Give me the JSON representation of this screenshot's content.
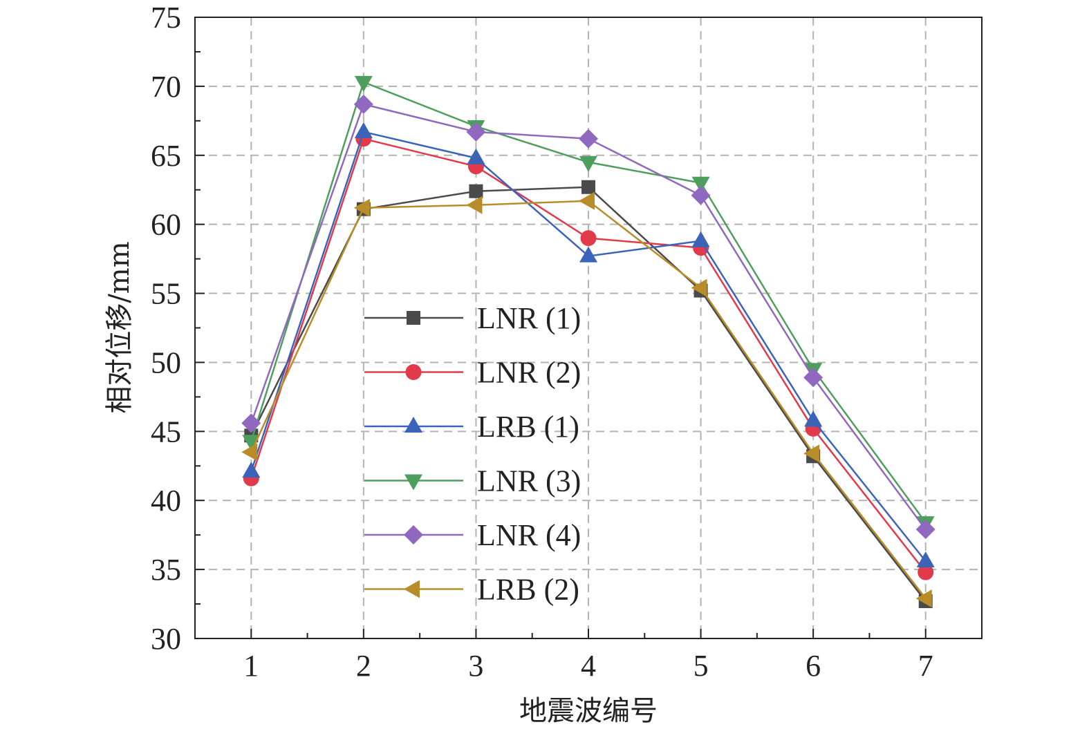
{
  "chart_data": {
    "type": "line",
    "title": "",
    "xlabel": "地震波编号",
    "ylabel": "相对位移/mm",
    "x": [
      1,
      2,
      3,
      4,
      5,
      6,
      7
    ],
    "xlim": [
      0.5,
      7.5
    ],
    "ylim": [
      30,
      75
    ],
    "xticks": [
      1,
      2,
      3,
      4,
      5,
      6,
      7
    ],
    "yticks": [
      30,
      35,
      40,
      45,
      50,
      55,
      60,
      65,
      70,
      75
    ],
    "grid": true,
    "legend_position": "center-left",
    "series": [
      {
        "name": "LNR (1)",
        "color": "#4a4a4a",
        "marker": "square",
        "values": [
          44.7,
          61.1,
          62.4,
          62.7,
          55.2,
          43.2,
          32.7
        ]
      },
      {
        "name": "LNR (2)",
        "color": "#e23a4a",
        "marker": "circle",
        "values": [
          41.6,
          66.2,
          64.2,
          59.0,
          58.3,
          45.2,
          34.8
        ]
      },
      {
        "name": "LRB (1)",
        "color": "#3b64b9",
        "marker": "triangle-up",
        "values": [
          42.1,
          66.7,
          64.8,
          57.7,
          58.8,
          45.8,
          35.6
        ]
      },
      {
        "name": "LNR (3)",
        "color": "#4e9e5d",
        "marker": "triangle-down",
        "values": [
          44.3,
          70.3,
          67.1,
          64.5,
          63.0,
          49.5,
          38.4
        ]
      },
      {
        "name": "LNR (4)",
        "color": "#9068c0",
        "marker": "diamond",
        "values": [
          45.6,
          68.7,
          66.7,
          66.2,
          62.1,
          48.9,
          37.9
        ]
      },
      {
        "name": "LRB (2)",
        "color": "#b88c28",
        "marker": "triangle-left",
        "values": [
          43.5,
          61.2,
          61.4,
          61.7,
          55.4,
          43.4,
          32.9
        ]
      }
    ]
  }
}
